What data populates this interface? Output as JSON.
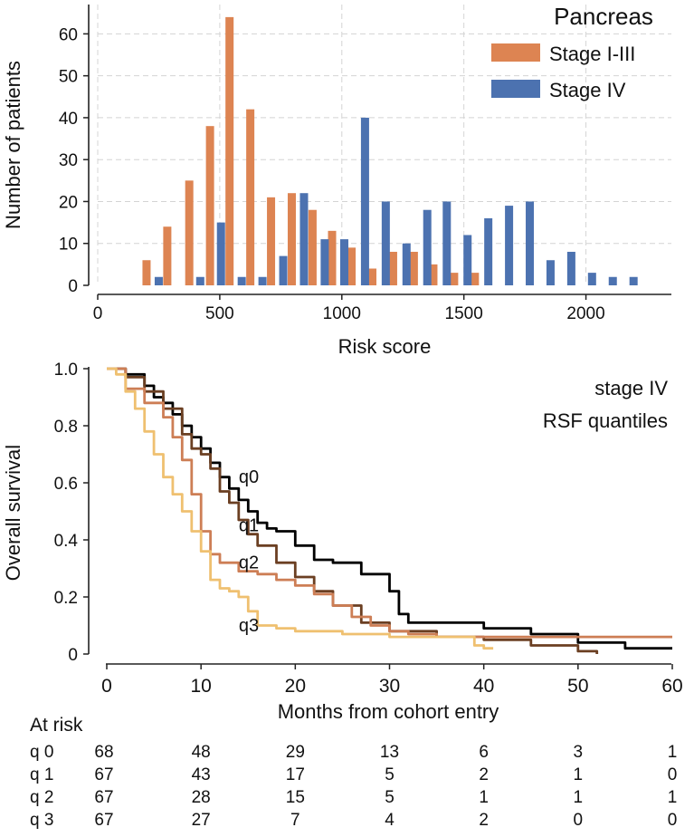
{
  "chart_data": [
    {
      "type": "bar",
      "title": "Pancreas",
      "xlabel": "Risk score",
      "ylabel": "Number of patients",
      "xlim": [
        0,
        2350
      ],
      "ylim": [
        0,
        67
      ],
      "xticks": [
        0,
        500,
        1000,
        1500,
        2000
      ],
      "yticks": [
        0,
        10,
        20,
        30,
        40,
        50,
        60
      ],
      "grid": true,
      "legend_position": "top-right",
      "series": [
        {
          "name": "Stage I-III",
          "color": "#DD8452",
          "x": [
            200,
            285,
            375,
            460,
            540,
            625,
            710,
            795,
            880,
            960,
            1040,
            1125,
            1210,
            1295,
            1375,
            1460,
            1545
          ],
          "values": [
            6,
            14,
            25,
            38,
            64,
            42,
            21,
            22,
            18,
            13,
            9,
            4,
            8,
            8,
            5,
            3,
            3
          ]
        },
        {
          "name": "Stage IV",
          "color": "#4C72B0",
          "x": [
            250,
            420,
            505,
            590,
            675,
            760,
            845,
            930,
            1010,
            1095,
            1180,
            1265,
            1350,
            1430,
            1515,
            1600,
            1685,
            1770,
            1855,
            1940,
            2025,
            2110,
            2195
          ],
          "values": [
            2,
            2,
            15,
            2,
            2,
            7,
            22,
            11,
            11,
            40,
            20,
            10,
            18,
            20,
            12,
            16,
            19,
            20,
            6,
            8,
            3,
            2,
            2
          ]
        }
      ]
    },
    {
      "type": "line",
      "annotations": [
        "stage IV",
        "RSF quantiles"
      ],
      "xlabel": "Months from cohort entry",
      "ylabel": "Overall survival",
      "xlim": [
        0,
        60
      ],
      "ylim": [
        0,
        1.0
      ],
      "xticks": [
        0,
        10,
        20,
        30,
        40,
        50,
        60
      ],
      "yticks": [
        0,
        0.2,
        0.4,
        0.6,
        0.8,
        1.0
      ],
      "ytick_labels": [
        "0",
        "0.2",
        "0.4",
        "0.6",
        "0.8",
        "1.0"
      ],
      "grid": false,
      "series": [
        {
          "name": "q0",
          "color": "#000000",
          "x": [
            0,
            2,
            4,
            5,
            6,
            7,
            8,
            9,
            10,
            11,
            12,
            13,
            14,
            15,
            16,
            17,
            18,
            20,
            22,
            24,
            27,
            30,
            31,
            32,
            35,
            40,
            45,
            50,
            55,
            60
          ],
          "y": [
            1.0,
            0.98,
            0.94,
            0.9,
            0.88,
            0.84,
            0.8,
            0.76,
            0.72,
            0.67,
            0.62,
            0.58,
            0.54,
            0.5,
            0.46,
            0.44,
            0.43,
            0.38,
            0.33,
            0.32,
            0.28,
            0.22,
            0.14,
            0.11,
            0.11,
            0.09,
            0.07,
            0.04,
            0.02,
            0.02
          ]
        },
        {
          "name": "q1",
          "color": "#6B3F22",
          "x": [
            0,
            2,
            4,
            6,
            8,
            9,
            10,
            11,
            12,
            13,
            14,
            15,
            16,
            18,
            20,
            22,
            24,
            27,
            30,
            35,
            40,
            45,
            50,
            52
          ],
          "y": [
            1.0,
            0.97,
            0.92,
            0.86,
            0.77,
            0.72,
            0.7,
            0.65,
            0.57,
            0.53,
            0.47,
            0.42,
            0.38,
            0.32,
            0.27,
            0.22,
            0.17,
            0.11,
            0.08,
            0.06,
            0.05,
            0.03,
            0.01,
            0.0
          ]
        },
        {
          "name": "q2",
          "color": "#CD7E55",
          "x": [
            0,
            2,
            4,
            6,
            7,
            8,
            9,
            10,
            11,
            12,
            14,
            16,
            18,
            20,
            22,
            24,
            26,
            28,
            30,
            32,
            35,
            40,
            45,
            50,
            60
          ],
          "y": [
            1.0,
            0.93,
            0.88,
            0.83,
            0.76,
            0.68,
            0.56,
            0.43,
            0.35,
            0.32,
            0.29,
            0.28,
            0.26,
            0.24,
            0.21,
            0.17,
            0.13,
            0.1,
            0.08,
            0.07,
            0.06,
            0.06,
            0.06,
            0.06,
            0.06
          ]
        },
        {
          "name": "q3",
          "color": "#EFC070",
          "x": [
            0,
            1,
            2,
            3,
            4,
            5,
            6,
            7,
            8,
            9,
            10,
            11,
            12,
            13,
            14,
            15,
            16,
            18,
            20,
            25,
            30,
            35,
            38,
            39,
            40,
            41
          ],
          "y": [
            1.0,
            0.98,
            0.92,
            0.86,
            0.78,
            0.7,
            0.62,
            0.56,
            0.5,
            0.43,
            0.36,
            0.26,
            0.23,
            0.22,
            0.2,
            0.15,
            0.1,
            0.09,
            0.08,
            0.07,
            0.06,
            0.06,
            0.06,
            0.03,
            0.02,
            0.02
          ]
        }
      ],
      "curve_labels": [
        {
          "text": "q0",
          "x": 14,
          "y": 0.6
        },
        {
          "text": "q1",
          "x": 14,
          "y": 0.43
        },
        {
          "text": "q2",
          "x": 14,
          "y": 0.3
        },
        {
          "text": "q3",
          "x": 14,
          "y": 0.08
        }
      ]
    },
    {
      "type": "table",
      "title": "At risk",
      "time_points": [
        0,
        10,
        20,
        30,
        40,
        50,
        60
      ],
      "rows": [
        {
          "label": "q 0",
          "values": [
            68,
            48,
            29,
            13,
            6,
            3,
            1
          ]
        },
        {
          "label": "q 1",
          "values": [
            67,
            43,
            17,
            5,
            2,
            1,
            0
          ]
        },
        {
          "label": "q 2",
          "values": [
            67,
            28,
            15,
            5,
            1,
            1,
            1
          ]
        },
        {
          "label": "q 3",
          "values": [
            67,
            27,
            7,
            4,
            2,
            0,
            0
          ]
        }
      ]
    }
  ]
}
